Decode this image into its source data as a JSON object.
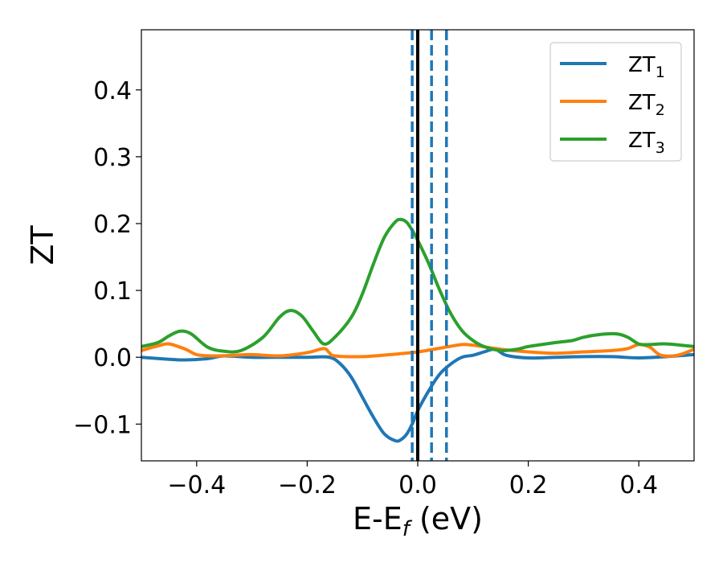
{
  "chart_data": {
    "type": "line",
    "title": "",
    "xlabel": "E-E",
    "xlabel_sub": "f",
    "xlabel_unit": " (eV)",
    "ylabel": "ZT",
    "xlim": [
      -0.5,
      0.5
    ],
    "ylim": [
      -0.155,
      0.49
    ],
    "xticks": [
      -0.4,
      -0.2,
      0.0,
      0.2,
      0.4
    ],
    "xtick_labels": [
      "−0.4",
      "−0.2",
      "0.0",
      "0.2",
      "0.4"
    ],
    "yticks": [
      -0.1,
      0.0,
      0.1,
      0.2,
      0.3,
      0.4
    ],
    "ytick_labels": [
      "−0.1",
      "0.0",
      "0.1",
      "0.2",
      "0.3",
      "0.4"
    ],
    "grid": false,
    "legend_position": "top-right",
    "vlines": [
      {
        "x": 0.0,
        "color": "#000000",
        "style": "solid"
      },
      {
        "x": -0.01,
        "color": "#1f77b4",
        "style": "dashed"
      },
      {
        "x": 0.025,
        "color": "#1f77b4",
        "style": "dashed"
      },
      {
        "x": 0.052,
        "color": "#1f77b4",
        "style": "dashed"
      }
    ],
    "series": [
      {
        "name": "ZT",
        "sub": "1",
        "color": "#1f77b4",
        "x": [
          -0.5,
          -0.45,
          -0.42,
          -0.38,
          -0.35,
          -0.3,
          -0.25,
          -0.2,
          -0.16,
          -0.14,
          -0.12,
          -0.1,
          -0.08,
          -0.06,
          -0.04,
          -0.03,
          -0.02,
          -0.01,
          0.0,
          0.02,
          0.04,
          0.06,
          0.08,
          0.1,
          0.12,
          0.14,
          0.16,
          0.2,
          0.25,
          0.3,
          0.35,
          0.4,
          0.45,
          0.5
        ],
        "y": [
          0.0,
          -0.003,
          -0.004,
          -0.002,
          0.002,
          0.0,
          0.0,
          0.0,
          0.0,
          -0.01,
          -0.03,
          -0.06,
          -0.09,
          -0.115,
          -0.125,
          -0.123,
          -0.115,
          -0.1,
          -0.08,
          -0.05,
          -0.025,
          -0.01,
          0.0,
          0.003,
          0.008,
          0.012,
          0.003,
          -0.001,
          0.0,
          0.001,
          0.001,
          -0.001,
          0.001,
          0.004
        ]
      },
      {
        "name": "ZT",
        "sub": "2",
        "color": "#ff7f0e",
        "x": [
          -0.5,
          -0.47,
          -0.45,
          -0.42,
          -0.4,
          -0.37,
          -0.33,
          -0.3,
          -0.25,
          -0.2,
          -0.17,
          -0.16,
          -0.15,
          -0.1,
          -0.05,
          0.0,
          0.05,
          0.08,
          0.1,
          0.15,
          0.2,
          0.25,
          0.3,
          0.35,
          0.38,
          0.4,
          0.42,
          0.44,
          0.47,
          0.5
        ],
        "y": [
          0.01,
          0.017,
          0.02,
          0.012,
          0.004,
          0.002,
          0.003,
          0.004,
          0.002,
          0.007,
          0.013,
          0.007,
          0.002,
          0.001,
          0.004,
          0.008,
          0.015,
          0.019,
          0.018,
          0.012,
          0.008,
          0.006,
          0.008,
          0.01,
          0.013,
          0.019,
          0.015,
          0.003,
          0.003,
          0.012
        ]
      },
      {
        "name": "ZT",
        "sub": "3",
        "color": "#2ca02c",
        "x": [
          -0.5,
          -0.47,
          -0.45,
          -0.43,
          -0.41,
          -0.38,
          -0.35,
          -0.32,
          -0.28,
          -0.25,
          -0.23,
          -0.21,
          -0.19,
          -0.17,
          -0.15,
          -0.12,
          -0.1,
          -0.08,
          -0.06,
          -0.04,
          -0.03,
          -0.02,
          -0.01,
          0.0,
          0.02,
          0.04,
          0.06,
          0.08,
          0.1,
          0.12,
          0.15,
          0.18,
          0.2,
          0.25,
          0.28,
          0.3,
          0.33,
          0.36,
          0.38,
          0.4,
          0.42,
          0.45,
          0.5
        ],
        "y": [
          0.016,
          0.022,
          0.032,
          0.039,
          0.035,
          0.015,
          0.009,
          0.01,
          0.03,
          0.06,
          0.07,
          0.062,
          0.04,
          0.02,
          0.03,
          0.06,
          0.095,
          0.14,
          0.18,
          0.203,
          0.206,
          0.202,
          0.19,
          0.175,
          0.14,
          0.1,
          0.065,
          0.04,
          0.025,
          0.016,
          0.01,
          0.012,
          0.016,
          0.022,
          0.025,
          0.03,
          0.034,
          0.035,
          0.03,
          0.02,
          0.019,
          0.02,
          0.016
        ]
      }
    ]
  }
}
